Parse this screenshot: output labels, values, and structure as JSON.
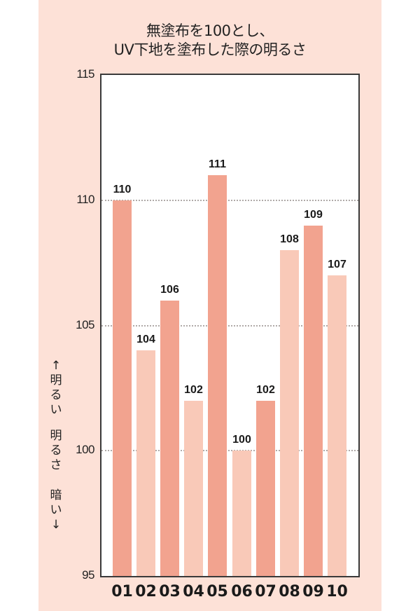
{
  "chart_data": {
    "type": "bar",
    "title": "無塗布を100とし、UV下地を塗布した際の明るさ",
    "title_lines": [
      "無塗布を100とし、",
      "UV下地を塗布した際の明るさ"
    ],
    "xlabel": "",
    "ylabel": "↑明るい 明るさ 暗い↓",
    "ylabel_parts": [
      "↑明るい",
      "明るさ",
      "暗い↓"
    ],
    "ylim": [
      95,
      115
    ],
    "yticks": [
      95,
      100,
      105,
      110,
      115
    ],
    "grid": "horizontal dotted at 100, 105, 110",
    "categories": [
      "01",
      "02",
      "03",
      "04",
      "05",
      "06",
      "07",
      "08",
      "09",
      "10"
    ],
    "values": [
      110,
      104,
      106,
      102,
      111,
      100,
      102,
      108,
      109,
      107
    ],
    "value_labels": [
      "110",
      "104",
      "106",
      "102",
      "111",
      "100",
      "102",
      "108",
      "109",
      "107"
    ],
    "bar_colors": [
      "#f2a38f",
      "#f9c9b8",
      "#f2a38f",
      "#f9c9b8",
      "#f2a38f",
      "#f9c9b8",
      "#f2a38f",
      "#f9c9b8",
      "#f2a38f",
      "#f9c9b8"
    ],
    "background_color": "#fde1d7"
  }
}
